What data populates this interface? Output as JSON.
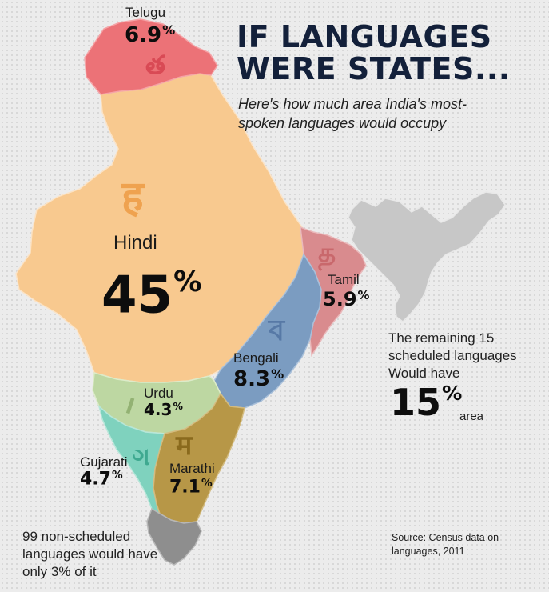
{
  "title": {
    "line1": "IF LANGUAGES",
    "line2": "WERE STATES..."
  },
  "subtitle": "Here's how much area India's most-spoken languages would occupy",
  "languages": [
    {
      "key": "telugu",
      "name": "Telugu",
      "percent": "6.9",
      "script": "త",
      "color": "#ec7277"
    },
    {
      "key": "hindi",
      "name": "Hindi",
      "percent": "45",
      "script": "ह",
      "color": "#f8c98f"
    },
    {
      "key": "tamil",
      "name": "Tamil",
      "percent": "5.9",
      "script": "த",
      "color": "#d98b8e"
    },
    {
      "key": "bengali",
      "name": "Bengali",
      "percent": "8.3",
      "script": "ব",
      "color": "#7b9cc1"
    },
    {
      "key": "urdu",
      "name": "Urdu",
      "percent": "4.3",
      "script": "ا",
      "color": "#bdd7a2"
    },
    {
      "key": "marathi",
      "name": "Marathi",
      "percent": "7.1",
      "script": "म",
      "color": "#b79747"
    },
    {
      "key": "gujarati",
      "name": "Gujarati",
      "percent": "4.7",
      "script": "ગ",
      "color": "#7fd2be"
    }
  ],
  "non_scheduled": {
    "text": "99 non-scheduled languages would have only 3% of it",
    "color": "#8e8e8e"
  },
  "remaining": {
    "text": "The remaining 15 scheduled languages Would have",
    "percent": "15",
    "unit": "area",
    "color": "#c7c7c7"
  },
  "percent_sign": "%",
  "source": "Source: Census data on languages, 2011"
}
